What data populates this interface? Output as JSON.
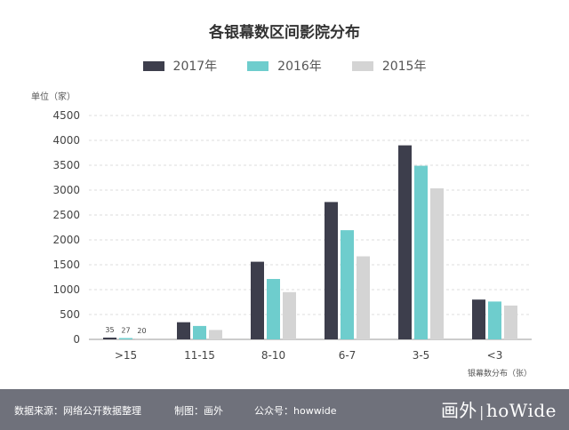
{
  "chart_data": {
    "type": "bar",
    "title": "各银幕数区间影院分布",
    "ylabel": "单位（家）",
    "xlabel": "银幕数分布（张）",
    "ylim": [
      0,
      4500
    ],
    "yticks": [
      0,
      500,
      1000,
      1500,
      2000,
      2500,
      3000,
      3500,
      4000,
      4500
    ],
    "grid": true,
    "legend_position": "top-center",
    "categories": [
      ">15",
      "11-15",
      "8-10",
      "6-7",
      "3-5",
      "<3"
    ],
    "series": [
      {
        "name": "2017年",
        "color": "#3d3e4c",
        "values": [
          35,
          345,
          1560,
          2760,
          3900,
          800
        ]
      },
      {
        "name": "2016年",
        "color": "#6ecdcd",
        "values": [
          27,
          270,
          1215,
          2195,
          3490,
          760
        ]
      },
      {
        "name": "2015年",
        "color": "#d4d4d4",
        "values": [
          20,
          190,
          950,
          1670,
          3035,
          680
        ]
      }
    ],
    "data_labels": [
      {
        "category": ">15",
        "series": "2017年",
        "text": "35"
      },
      {
        "category": ">15",
        "series": "2016年",
        "text": "27"
      },
      {
        "category": ">15",
        "series": "2015年",
        "text": "20"
      }
    ]
  },
  "footer": {
    "source": "数据来源：网络公开数据整理",
    "author": "制图：画外",
    "account": "公众号：howwide",
    "brand_cn": "画外",
    "brand_en": "hoWide"
  }
}
